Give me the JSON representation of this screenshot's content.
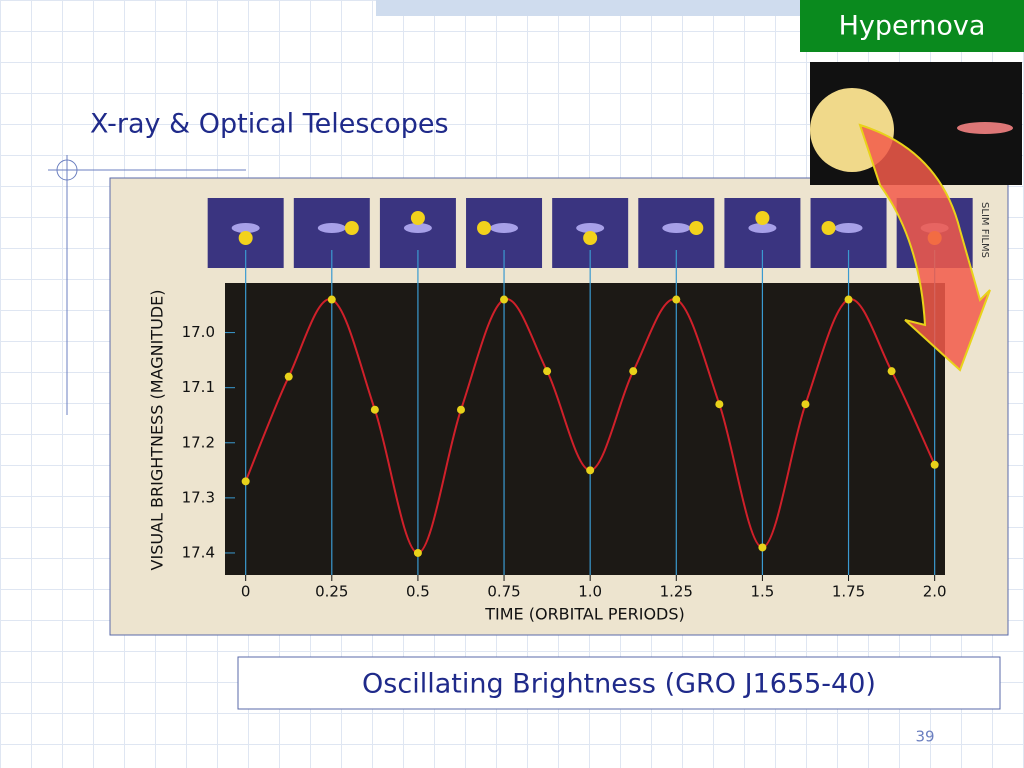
{
  "slide": {
    "title": "X-ray & Optical Telescopes",
    "tag": "Hypernova",
    "caption": "Oscillating Brightness (GRO J1655-40)",
    "page_number": 39
  },
  "chart_data": {
    "type": "line",
    "credit": "SLIM FILMS",
    "x_label": "TIME (ORBITAL PERIODS)",
    "y_label": "VISUAL BRIGHTNESS (MAGNITUDE)",
    "x": [
      0,
      0.125,
      0.25,
      0.375,
      0.5,
      0.625,
      0.75,
      0.875,
      1,
      1.125,
      1.25,
      1.375,
      1.5,
      1.625,
      1.75,
      1.875,
      2
    ],
    "series": [
      {
        "color": "#e8d21a",
        "line_color": "#d0202a",
        "values": [
          17.27,
          17.08,
          16.94,
          17.14,
          17.4,
          17.14,
          16.94,
          17.07,
          17.25,
          17.07,
          16.94,
          17.13,
          17.39,
          17.13,
          16.94,
          17.07,
          17.24
        ]
      }
    ],
    "xlim": [
      -0.06,
      2.03
    ],
    "ylim": [
      17.44,
      16.91
    ],
    "xticks": [
      0,
      0.25,
      0.5,
      0.75,
      {
        "value": 1,
        "label": "1.0"
      },
      1.25,
      1.5,
      1.75,
      {
        "value": 2,
        "label": "2.0"
      }
    ],
    "yticks": [
      {
        "value": 17,
        "label": "17.0"
      },
      17.1,
      17.2,
      17.3,
      17.4
    ]
  }
}
